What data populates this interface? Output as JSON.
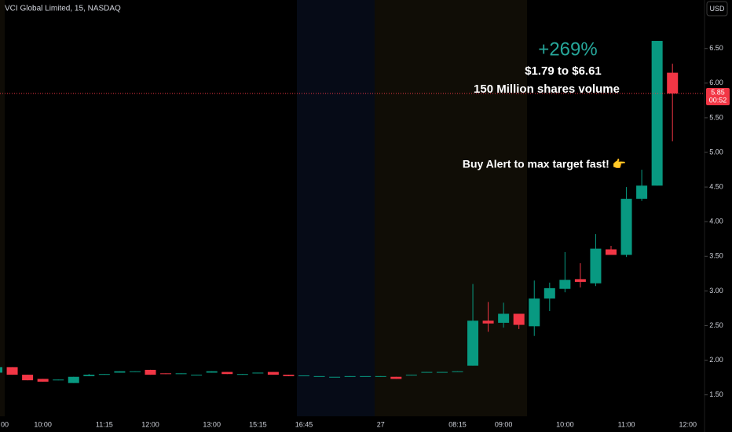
{
  "chart_data": {
    "type": "candlestick",
    "title": "VCI Global Limited, 15, NASDAQ",
    "currency_button": "USD",
    "up_color": "#089981",
    "down_color": "#f23645",
    "categories": [
      "00",
      null,
      null,
      "10:00",
      null,
      null,
      null,
      "11:15",
      null,
      null,
      "12:00",
      null,
      null,
      null,
      "13:00",
      null,
      null,
      "15:15",
      null,
      null,
      "16:45",
      null,
      null,
      null,
      null,
      "27",
      null,
      null,
      null,
      null,
      "08:15",
      null,
      null,
      "09:00",
      null,
      null,
      null,
      "10:00",
      null,
      null,
      null,
      "11:00",
      null,
      null,
      null,
      "12:00"
    ],
    "open": [
      1.82,
      1.9,
      1.79,
      1.73,
      1.71,
      1.67,
      1.77,
      1.79,
      1.82,
      1.83,
      1.86,
      1.81,
      1.8,
      1.78,
      1.82,
      1.83,
      1.79,
      1.81,
      1.83,
      1.79,
      1.77,
      1.77,
      1.76,
      1.76,
      1.77,
      1.76,
      1.76,
      1.78,
      1.82,
      1.82,
      1.83,
      1.92,
      2.57,
      2.54,
      2.67,
      2.49,
      2.89,
      3.03,
      3.17,
      3.11,
      3.6,
      3.52,
      4.33,
      4.52,
      6.15,
      null
    ],
    "high": [
      1.9,
      1.9,
      1.79,
      1.73,
      1.72,
      1.76,
      1.8,
      1.8,
      1.84,
      1.84,
      1.86,
      1.81,
      1.81,
      1.79,
      1.84,
      1.83,
      1.8,
      1.82,
      1.83,
      1.79,
      1.78,
      1.77,
      1.76,
      1.77,
      1.77,
      1.77,
      1.76,
      1.79,
      1.83,
      1.83,
      1.84,
      3.1,
      2.84,
      2.83,
      2.67,
      3.15,
      3.12,
      3.56,
      3.4,
      3.82,
      3.65,
      4.5,
      4.75,
      6.61,
      6.28,
      null
    ],
    "low": [
      1.82,
      1.79,
      1.71,
      1.69,
      1.71,
      1.67,
      1.77,
      1.79,
      1.82,
      1.83,
      1.79,
      1.8,
      1.8,
      1.78,
      1.82,
      1.8,
      1.79,
      1.81,
      1.79,
      1.77,
      1.77,
      1.77,
      1.76,
      1.76,
      1.77,
      1.76,
      1.73,
      1.78,
      1.82,
      1.82,
      1.83,
      1.92,
      2.41,
      2.47,
      2.45,
      2.35,
      2.71,
      2.98,
      3.05,
      3.07,
      3.52,
      3.49,
      4.3,
      4.52,
      5.16,
      null
    ],
    "close": [
      1.9,
      1.79,
      1.71,
      1.69,
      1.72,
      1.76,
      1.79,
      1.8,
      1.84,
      1.84,
      1.79,
      1.8,
      1.81,
      1.79,
      1.84,
      1.8,
      1.8,
      1.82,
      1.79,
      1.77,
      1.78,
      1.77,
      1.76,
      1.77,
      1.77,
      1.77,
      1.73,
      1.79,
      1.83,
      1.83,
      1.84,
      2.57,
      2.53,
      2.67,
      2.51,
      2.89,
      3.04,
      3.16,
      3.13,
      3.61,
      3.52,
      4.33,
      4.52,
      6.61,
      5.85,
      null
    ],
    "countdown": "00:52",
    "ylim": [
      1.19,
      7.2
    ],
    "yticks": [
      {
        "value": 1.5,
        "label": "1.50"
      },
      {
        "value": 2,
        "label": "2.00"
      },
      {
        "value": 2.5,
        "label": "2.50"
      },
      {
        "value": 3,
        "label": "3.00"
      },
      {
        "value": 3.5,
        "label": "3.50"
      },
      {
        "value": 4,
        "label": "4.00"
      },
      {
        "value": 4.5,
        "label": "4.50"
      },
      {
        "value": 5,
        "label": "5.00"
      },
      {
        "value": 5.5,
        "label": "5.50"
      },
      {
        "value": 6,
        "label": "6.00"
      },
      {
        "value": 6.5,
        "label": "6.50"
      }
    ],
    "grid": false,
    "annotations": [
      "+269%",
      "$1.79 to $6.61",
      "150 Million shares volume",
      "Buy Alert to max target fast! 👉"
    ]
  }
}
